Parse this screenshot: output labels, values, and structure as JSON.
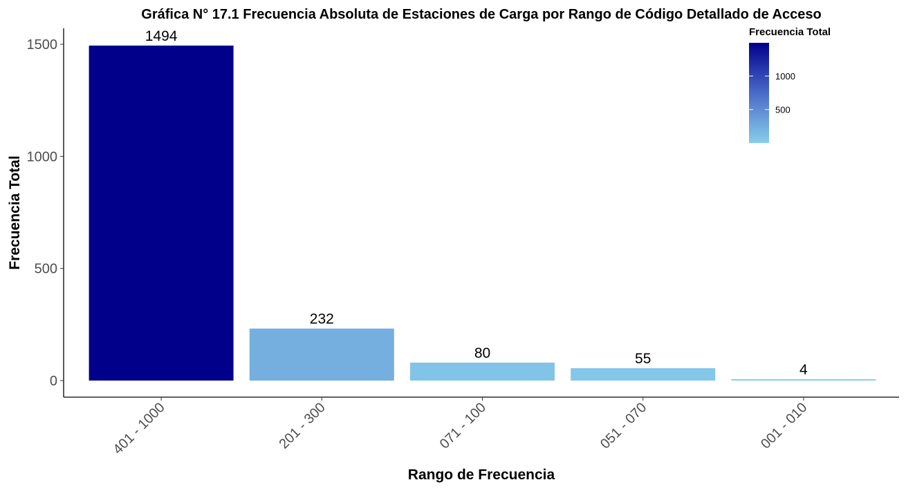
{
  "chart_data": {
    "type": "bar",
    "title": "Gráfica N° 17.1 Frecuencia Absoluta de Estaciones de Carga por Rango de Código Detallado de Acceso",
    "xlabel": "Rango de Frecuencia",
    "ylabel": "Frecuencia Total",
    "categories": [
      "401 - 1000",
      "201 - 300",
      "071 - 100",
      "051 - 070",
      "001 - 010"
    ],
    "values": [
      1494,
      232,
      80,
      55,
      4
    ],
    "data_labels": [
      "1494",
      "232",
      "80",
      "55",
      "4"
    ],
    "ylim": [
      0,
      1575
    ],
    "y_ticks": [
      0,
      500,
      1000,
      1500
    ],
    "y_tick_labels": [
      "0",
      "500",
      "1000",
      "1500"
    ],
    "grid": false,
    "x_tick_rotation_deg": -45,
    "legend": {
      "title": "Frecuencia Total",
      "type": "colorbar",
      "placement": "top-right",
      "min": 4,
      "max": 1494,
      "ticks": [
        500,
        1000
      ],
      "tick_labels": [
        "500",
        "1000"
      ],
      "color_low": "#87ceeb",
      "color_high": "#00008b"
    },
    "colors": {
      "low": "#87ceeb",
      "high": "#00008b",
      "axis": "#000000",
      "tick_text": "#4d4d4d"
    }
  }
}
